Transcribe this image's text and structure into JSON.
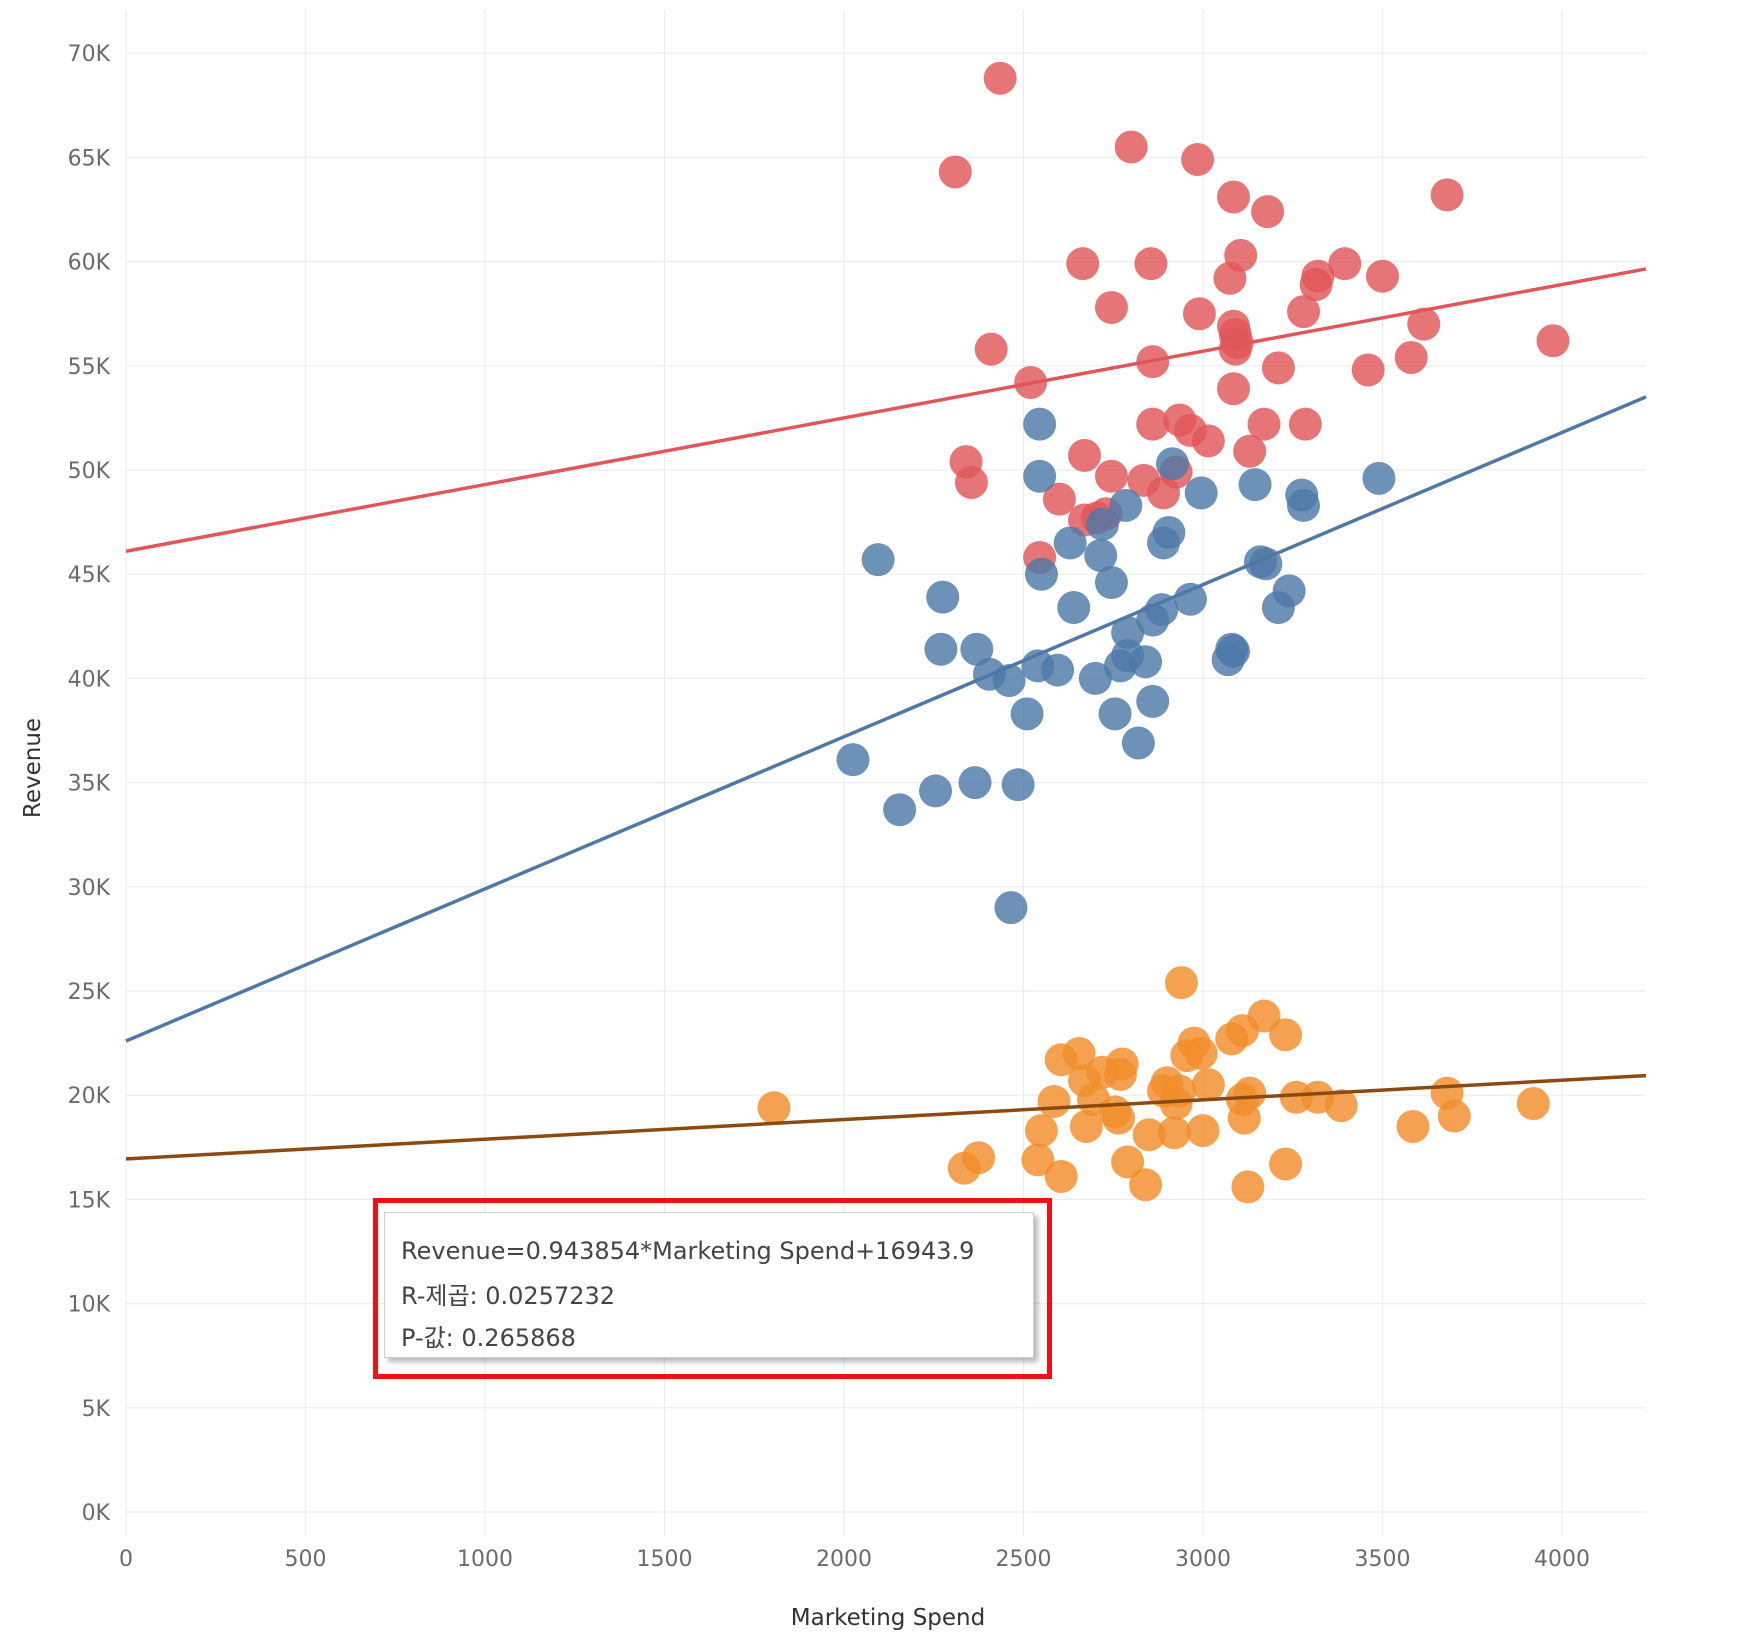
{
  "chart_data": {
    "type": "scatter",
    "title": "",
    "xlabel": "Marketing Spend",
    "ylabel": "Revenue",
    "xlim": [
      0,
      4230
    ],
    "ylim": [
      0,
      73000
    ],
    "x_ticks": [
      0,
      500,
      1000,
      1500,
      2000,
      2500,
      3000,
      3500,
      4000
    ],
    "x_tick_labels": [
      "0",
      "500",
      "1000",
      "1500",
      "2000",
      "2500",
      "3000",
      "3500",
      "4000"
    ],
    "y_ticks": [
      0,
      5000,
      10000,
      15000,
      20000,
      25000,
      30000,
      35000,
      40000,
      45000,
      50000,
      55000,
      60000,
      65000,
      70000
    ],
    "y_tick_labels": [
      "0K",
      "5K",
      "10K",
      "15K",
      "20K",
      "25K",
      "30K",
      "35K",
      "40K",
      "45K",
      "50K",
      "55K",
      "60K",
      "65K",
      "70K"
    ],
    "grid": true,
    "series": [
      {
        "name": "red",
        "color": "#e15759",
        "trend": {
          "slope": 3.2,
          "intercept": 46100,
          "line_color": "#e15759"
        },
        "points": [
          [
            2435,
            68800
          ],
          [
            2310,
            64300
          ],
          [
            2800,
            65500
          ],
          [
            2985,
            64900
          ],
          [
            3085,
            63100
          ],
          [
            3180,
            62400
          ],
          [
            3680,
            63200
          ],
          [
            2665,
            59900
          ],
          [
            2855,
            59900
          ],
          [
            3105,
            60300
          ],
          [
            3075,
            59200
          ],
          [
            3320,
            59300
          ],
          [
            3395,
            59900
          ],
          [
            3500,
            59300
          ],
          [
            3315,
            58900
          ],
          [
            2745,
            57800
          ],
          [
            2990,
            57500
          ],
          [
            3085,
            56900
          ],
          [
            3090,
            56500
          ],
          [
            3095,
            56100
          ],
          [
            3090,
            55800
          ],
          [
            3280,
            57600
          ],
          [
            3615,
            57000
          ],
          [
            3975,
            56200
          ],
          [
            2410,
            55800
          ],
          [
            2520,
            54200
          ],
          [
            2860,
            55200
          ],
          [
            3210,
            54900
          ],
          [
            3460,
            54800
          ],
          [
            3580,
            55400
          ],
          [
            3085,
            53900
          ],
          [
            2860,
            52200
          ],
          [
            2935,
            52400
          ],
          [
            2965,
            51900
          ],
          [
            3015,
            51400
          ],
          [
            3170,
            52200
          ],
          [
            3285,
            52200
          ],
          [
            3130,
            50900
          ],
          [
            2340,
            50400
          ],
          [
            2355,
            49400
          ],
          [
            2670,
            50700
          ],
          [
            2745,
            49700
          ],
          [
            2835,
            49500
          ],
          [
            2925,
            49900
          ],
          [
            2890,
            48900
          ],
          [
            2600,
            48600
          ],
          [
            2670,
            47600
          ],
          [
            2705,
            47700
          ],
          [
            2730,
            47900
          ],
          [
            2545,
            45800
          ]
        ]
      },
      {
        "name": "blue",
        "color": "#4e79a7",
        "trend": {
          "slope": 7.3,
          "intercept": 22600,
          "line_color": "#4e79a7"
        },
        "points": [
          [
            2545,
            52200
          ],
          [
            2545,
            49700
          ],
          [
            2915,
            50300
          ],
          [
            2995,
            48900
          ],
          [
            3145,
            49300
          ],
          [
            3275,
            48800
          ],
          [
            3280,
            48300
          ],
          [
            3490,
            49600
          ],
          [
            2785,
            48300
          ],
          [
            2720,
            47400
          ],
          [
            2905,
            47000
          ],
          [
            2890,
            46500
          ],
          [
            2630,
            46500
          ],
          [
            2095,
            45700
          ],
          [
            2715,
            45900
          ],
          [
            2550,
            45000
          ],
          [
            3160,
            45600
          ],
          [
            3175,
            45500
          ],
          [
            2745,
            44600
          ],
          [
            3240,
            44200
          ],
          [
            2275,
            43900
          ],
          [
            2965,
            43800
          ],
          [
            2885,
            43300
          ],
          [
            2860,
            42800
          ],
          [
            2640,
            43400
          ],
          [
            3210,
            43400
          ],
          [
            2790,
            42200
          ],
          [
            2270,
            41400
          ],
          [
            2370,
            41400
          ],
          [
            2790,
            41100
          ],
          [
            2840,
            40800
          ],
          [
            3080,
            41400
          ],
          [
            3085,
            41300
          ],
          [
            3070,
            40900
          ],
          [
            2405,
            40200
          ],
          [
            2460,
            39900
          ],
          [
            2540,
            40600
          ],
          [
            2595,
            40400
          ],
          [
            2700,
            40000
          ],
          [
            2770,
            40600
          ],
          [
            2860,
            38900
          ],
          [
            2510,
            38300
          ],
          [
            2755,
            38300
          ],
          [
            2820,
            36900
          ],
          [
            2025,
            36100
          ],
          [
            2365,
            35000
          ],
          [
            2255,
            34600
          ],
          [
            2155,
            33700
          ],
          [
            2485,
            34900
          ],
          [
            2465,
            29000
          ]
        ]
      },
      {
        "name": "orange",
        "color": "#f28e2b",
        "trend": {
          "slope": 0.943854,
          "intercept": 16943.9,
          "line_color": "#8a4a12"
        },
        "points": [
          [
            1805,
            19400
          ],
          [
            2940,
            25400
          ],
          [
            3170,
            23800
          ],
          [
            3230,
            22900
          ],
          [
            3110,
            23100
          ],
          [
            3080,
            22700
          ],
          [
            2975,
            22500
          ],
          [
            2995,
            22000
          ],
          [
            2955,
            21900
          ],
          [
            2655,
            22000
          ],
          [
            2605,
            21700
          ],
          [
            2775,
            21500
          ],
          [
            2720,
            21100
          ],
          [
            2670,
            20700
          ],
          [
            2770,
            21000
          ],
          [
            2900,
            20600
          ],
          [
            2935,
            20200
          ],
          [
            2890,
            20200
          ],
          [
            3015,
            20500
          ],
          [
            3130,
            20100
          ],
          [
            3110,
            19800
          ],
          [
            3260,
            19900
          ],
          [
            3320,
            19900
          ],
          [
            3385,
            19500
          ],
          [
            3680,
            20100
          ],
          [
            3700,
            19000
          ],
          [
            3920,
            19600
          ],
          [
            3585,
            18500
          ],
          [
            2585,
            19700
          ],
          [
            2695,
            19800
          ],
          [
            2755,
            19200
          ],
          [
            2765,
            18900
          ],
          [
            2850,
            18100
          ],
          [
            2920,
            18200
          ],
          [
            3000,
            18300
          ],
          [
            2925,
            19600
          ],
          [
            3115,
            18900
          ],
          [
            2550,
            18300
          ],
          [
            2675,
            18500
          ],
          [
            2375,
            17000
          ],
          [
            2335,
            16500
          ],
          [
            2540,
            16900
          ],
          [
            2605,
            16100
          ],
          [
            2790,
            16800
          ],
          [
            2840,
            15700
          ],
          [
            3125,
            15600
          ],
          [
            3230,
            16700
          ]
        ]
      }
    ],
    "tooltip": {
      "line1": "Revenue=0.943854*Marketing Spend+16943.9",
      "line2": "R-제곱: 0.0257232",
      "line3": "P-값: 0.265868"
    }
  }
}
